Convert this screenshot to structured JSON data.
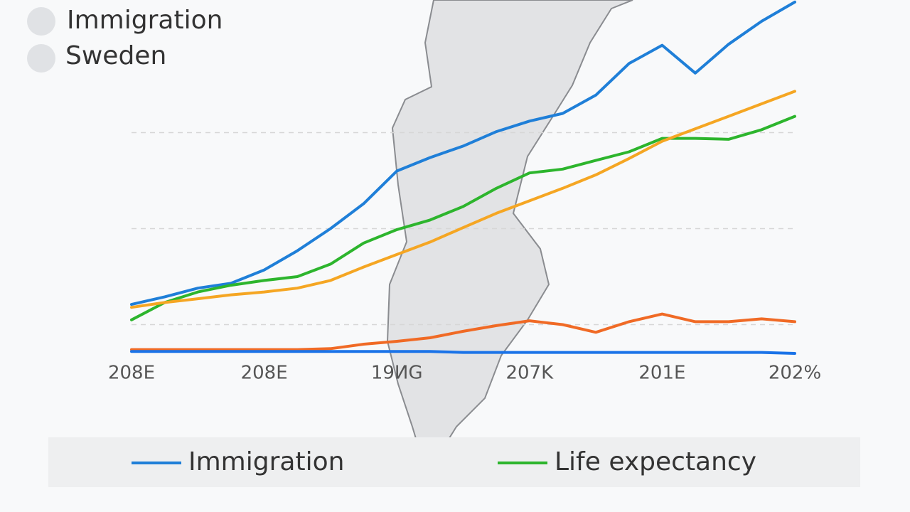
{
  "chart_data": {
    "type": "line",
    "annotations": [
      "Immigration",
      "Sweden"
    ],
    "x": [
      0,
      1,
      2,
      3,
      4,
      5,
      6,
      7,
      8,
      9,
      10,
      11,
      12,
      13,
      14,
      15,
      16,
      17,
      18,
      19,
      20
    ],
    "xlim": [
      0,
      20
    ],
    "xticks": [
      {
        "value": 0,
        "label": "208E"
      },
      {
        "value": 4,
        "label": "208E"
      },
      {
        "value": 8,
        "label": "19ИG"
      },
      {
        "value": 12,
        "label": "207K"
      },
      {
        "value": 16,
        "label": "201E"
      },
      {
        "value": 20,
        "label": "202%"
      }
    ],
    "ylim": [
      0,
      37
    ],
    "yticks": [
      3,
      13,
      23
    ],
    "grid": true,
    "legend": "bottom",
    "series": [
      {
        "name": "Immigration",
        "color": "#1f7fd8",
        "values": [
          5.1,
          5.9,
          6.8,
          7.3,
          8.7,
          10.7,
          13,
          15.6,
          19,
          20.4,
          21.6,
          23.1,
          24.2,
          25,
          26.9,
          30.2,
          32.1,
          29.2,
          32.2,
          34.6,
          36.6
        ]
      },
      {
        "name": "Life expectancy",
        "color": "#2db52d",
        "values": [
          3.5,
          5.3,
          6.4,
          7.1,
          7.6,
          8.0,
          9.3,
          11.5,
          12.9,
          13.9,
          15.3,
          17.2,
          18.8,
          19.2,
          20.1,
          21,
          22.4,
          22.4,
          22.3,
          23.3,
          24.7
        ]
      },
      {
        "color": "#f5a623",
        "values": [
          4.8,
          5.3,
          5.7,
          6.1,
          6.4,
          6.8,
          7.6,
          9,
          10.3,
          11.6,
          13.1,
          14.6,
          15.9,
          17.2,
          18.6,
          20.3,
          22.1,
          23.4,
          24.7,
          26,
          27.3
        ]
      },
      {
        "color": "#f06a25",
        "values": [
          0.4,
          0.4,
          0.4,
          0.4,
          0.4,
          0.4,
          0.5,
          0.96,
          1.26,
          1.63,
          2.3,
          2.9,
          3.4,
          3.0,
          2.2,
          3.3,
          4.1,
          3.3,
          3.3,
          3.6,
          3.3
        ]
      },
      {
        "color": "#1a73e8",
        "values": [
          0.2,
          0.2,
          0.2,
          0.2,
          0.2,
          0.2,
          0.2,
          0.2,
          0.2,
          0.2,
          0.1,
          0.1,
          0.1,
          0.1,
          0.1,
          0.1,
          0.1,
          0.1,
          0.1,
          0.1,
          0
        ]
      }
    ]
  }
}
